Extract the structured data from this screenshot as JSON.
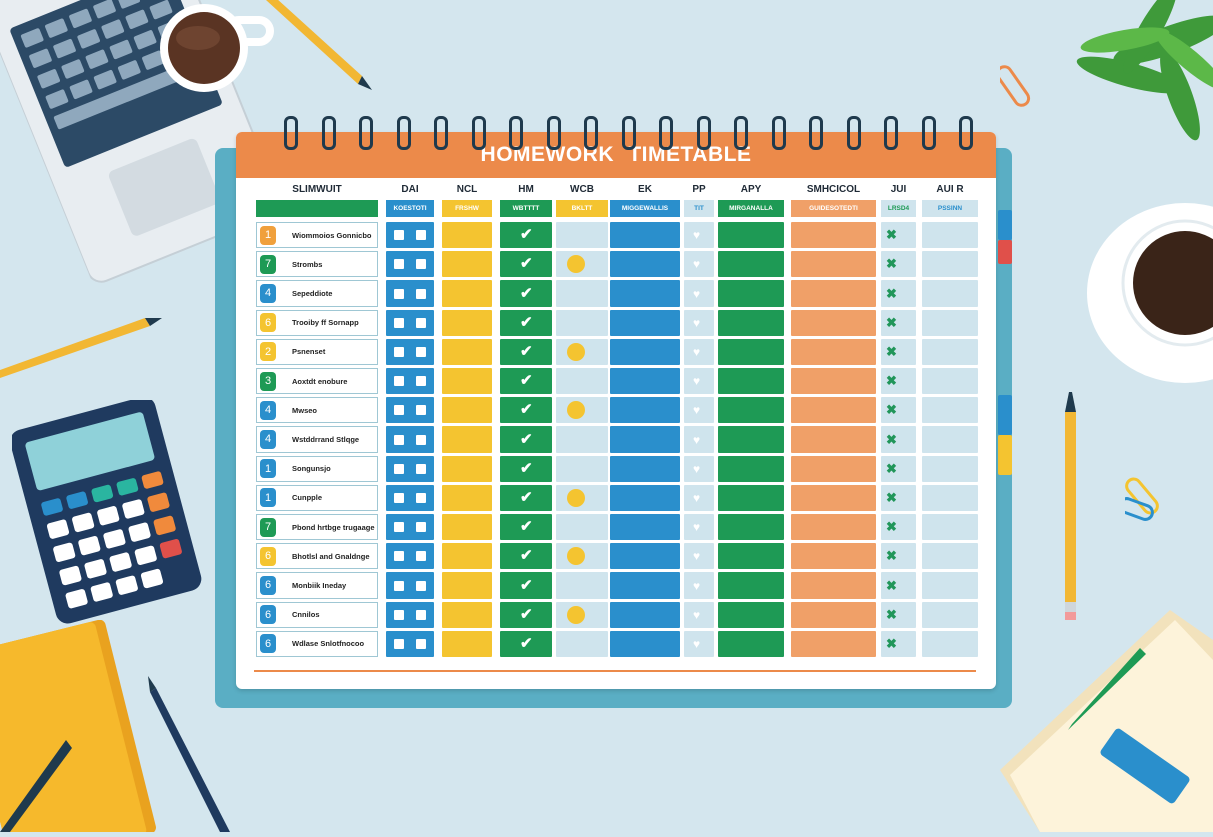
{
  "planner": {
    "title": "HOMEWORK TIMETABLE",
    "columns": [
      "SLIMWUIT",
      "DAI",
      "NCL",
      "HM",
      "WCB",
      "EK",
      "PP",
      "APY",
      "SMHCICOL",
      "JUI",
      "AUI R"
    ],
    "subheaders": [
      "",
      "KOESTOTI",
      "FRSHW",
      "WBTTTT",
      "BKLTT",
      "MIGGEWALLIS",
      "TIT",
      "MIRGANALLA",
      "GUIDESOTEDTI",
      "LRSD4",
      "PSSINN"
    ],
    "rows": [
      {
        "num": "1",
        "task": "Wiommoios Gonnicbo",
        "color": "#f0a03c",
        "dot": false
      },
      {
        "num": "7",
        "task": "Strombs",
        "color": "#1e9a55",
        "dot": true
      },
      {
        "num": "4",
        "task": "Sepeddiote",
        "color": "#2a8fcc",
        "dot": false
      },
      {
        "num": "6",
        "task": "Trooiby ff Sornapp",
        "color": "#f4c430",
        "dot": false
      },
      {
        "num": "2",
        "task": "Psnenset",
        "color": "#f4c430",
        "dot": true
      },
      {
        "num": "3",
        "task": "Aoxtdt enobure",
        "color": "#1e9a55",
        "dot": false
      },
      {
        "num": "4",
        "task": "Mwseo",
        "color": "#2a8fcc",
        "dot": true
      },
      {
        "num": "4",
        "task": "Wstddrrand Stlqge",
        "color": "#2a8fcc",
        "dot": false
      },
      {
        "num": "1",
        "task": "Songunsjo",
        "color": "#2a8fcc",
        "dot": false
      },
      {
        "num": "1",
        "task": "Cunpple",
        "color": "#2a8fcc",
        "dot": true
      },
      {
        "num": "7",
        "task": "Pbond hrtbge trugaage",
        "color": "#1e9a55",
        "dot": false
      },
      {
        "num": "6",
        "task": "Bhotlsl and Gnaldnge",
        "color": "#f4c430",
        "dot": true
      },
      {
        "num": "6",
        "task": "Monbiik Ineday",
        "color": "#2a8fcc",
        "dot": false
      },
      {
        "num": "6",
        "task": "Cnnilos",
        "color": "#2a8fcc",
        "dot": true
      },
      {
        "num": "6",
        "task": "Wdlase Snlotfnocoo",
        "color": "#2a8fcc",
        "dot": false
      }
    ]
  },
  "colors": {
    "background": "#d4e6ee",
    "header": "#ec8a4a",
    "blue": "#2a8fcc",
    "yellow": "#f4c430",
    "green": "#1e9a55",
    "orange": "#f0a068",
    "light": "#cfe4ed"
  },
  "objects": [
    "laptop",
    "coffee-cup",
    "pencil",
    "calculator",
    "notebook",
    "plant",
    "paper-clip",
    "eraser"
  ]
}
